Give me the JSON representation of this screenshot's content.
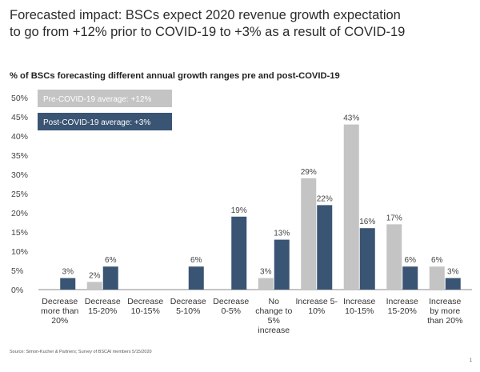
{
  "title_line1": "Forecasted impact: BSCs expect 2020 revenue growth expectation",
  "title_line2": "to go from +12% prior to COVID-19 to +3% as a result of COVID-19",
  "source": "Source: Simon-Kucher & Partners; Survey of BSCAI members 5/15/2020",
  "page_number": "1",
  "colors": {
    "pre": "#c4c4c4",
    "post": "#3a5473",
    "axis": "#888888"
  },
  "chart_data": {
    "type": "bar",
    "title": "% of BSCs forecasting different annual growth ranges pre and post-COVID-19",
    "ylim": [
      0,
      50
    ],
    "yticks": [
      0,
      5,
      10,
      15,
      20,
      25,
      30,
      35,
      40,
      45,
      50
    ],
    "ytick_labels": [
      "0%",
      "5%",
      "10%",
      "15%",
      "20%",
      "25%",
      "30%",
      "35%",
      "40%",
      "45%",
      "50%"
    ],
    "categories": [
      [
        "Decrease",
        "more than",
        "20%"
      ],
      [
        "Decrease",
        "15-20%"
      ],
      [
        "Decrease",
        "10-15%"
      ],
      [
        "Decrease",
        "5-10%"
      ],
      [
        "Decrease",
        "0-5%"
      ],
      [
        "No",
        "change to",
        "5%",
        "increase"
      ],
      [
        "Increase 5-",
        "10%"
      ],
      [
        "Increase",
        "10-15%"
      ],
      [
        "Increase",
        "15-20%"
      ],
      [
        "Increase",
        "by more",
        "than 20%"
      ]
    ],
    "series": [
      {
        "name": "Pre-COVID-19 average: +12%",
        "values": [
          null,
          2,
          null,
          null,
          null,
          3,
          29,
          43,
          17,
          6
        ],
        "labels": [
          null,
          "2%",
          null,
          null,
          null,
          "3%",
          "29%",
          "43%",
          "17%",
          "6%"
        ]
      },
      {
        "name": "Post-COVID-19 average: +3%",
        "values": [
          3,
          6,
          null,
          6,
          19,
          13,
          22,
          16,
          6,
          3
        ],
        "labels": [
          "3%",
          "6%",
          null,
          "6%",
          "19%",
          "13%",
          "22%",
          "16%",
          "6%",
          "3%"
        ]
      }
    ]
  }
}
